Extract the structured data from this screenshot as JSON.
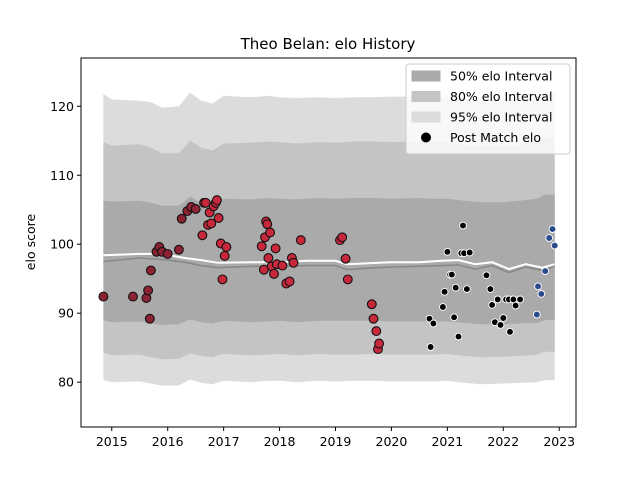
{
  "chart_data": {
    "type": "scatter",
    "title": "Theo Belan: elo History",
    "xlabel": "",
    "ylabel": "elo score",
    "xlim": [
      2014.45,
      2023.3
    ],
    "ylim": [
      73.5,
      127.0
    ],
    "xticks": [
      2015,
      2016,
      2017,
      2018,
      2019,
      2020,
      2021,
      2022,
      2023
    ],
    "xtick_labels": [
      "2015",
      "2016",
      "2017",
      "2018",
      "2019",
      "2020",
      "2021",
      "2022",
      "2023"
    ],
    "yticks": [
      80,
      90,
      100,
      110,
      120
    ],
    "ytick_labels": [
      "80",
      "90",
      "100",
      "110",
      "120"
    ],
    "legend_position": "top-right",
    "legend": [
      {
        "label": "50% elo Interval",
        "kind": "band",
        "color": "#aaaaaa"
      },
      {
        "label": "80% elo Interval",
        "kind": "band",
        "color": "#c4c4c4"
      },
      {
        "label": "95% elo Interval",
        "kind": "band",
        "color": "#dcdcdc"
      },
      {
        "label": "Post Match elo",
        "kind": "marker",
        "color": "#000000"
      }
    ],
    "bands": {
      "x": [
        2014.85,
        2015.0,
        2015.5,
        2015.7,
        2015.9,
        2016.2,
        2016.4,
        2016.6,
        2016.8,
        2017.0,
        2017.5,
        2017.8,
        2018.0,
        2018.3,
        2018.7,
        2019.0,
        2019.3,
        2019.7,
        2020.0,
        2020.5,
        2020.7,
        2021.0,
        2021.3,
        2021.6,
        2022.0,
        2022.3,
        2022.6,
        2022.75,
        2022.92
      ],
      "p95_upper": [
        121.8,
        121.0,
        120.8,
        120.6,
        119.8,
        120.0,
        122.0,
        120.8,
        120.4,
        121.5,
        121.3,
        121.5,
        121.3,
        121.2,
        121.3,
        121.2,
        121.3,
        121.3,
        121.4,
        121.4,
        121.3,
        121.4,
        121.0,
        121.0,
        120.9,
        121.1,
        121.4,
        122.0,
        122.0
      ],
      "p80_upper": [
        114.8,
        114.3,
        114.5,
        114.0,
        113.2,
        113.2,
        115.0,
        114.0,
        113.6,
        114.6,
        114.7,
        114.9,
        114.8,
        114.6,
        114.8,
        114.7,
        114.9,
        114.9,
        114.8,
        114.9,
        114.8,
        114.8,
        114.4,
        114.2,
        114.2,
        114.4,
        114.8,
        115.5,
        115.5
      ],
      "p50_upper": [
        106.3,
        106.2,
        106.3,
        106.0,
        105.6,
        105.6,
        106.9,
        106.0,
        105.8,
        106.6,
        106.5,
        106.7,
        106.6,
        106.5,
        106.7,
        106.6,
        106.7,
        106.7,
        106.6,
        106.7,
        106.6,
        106.6,
        106.3,
        106.1,
        106.1,
        106.3,
        106.6,
        107.2,
        107.2
      ],
      "p50_lower": [
        89.0,
        88.7,
        88.8,
        88.5,
        88.3,
        88.4,
        89.1,
        88.7,
        88.5,
        88.9,
        88.7,
        88.8,
        88.9,
        88.7,
        88.9,
        88.9,
        88.9,
        88.9,
        88.8,
        88.8,
        88.8,
        88.8,
        88.6,
        88.4,
        88.4,
        88.5,
        88.6,
        89.0,
        89.0
      ],
      "p80_lower": [
        84.3,
        83.9,
        84.0,
        83.6,
        83.3,
        83.4,
        84.2,
        83.8,
        83.6,
        84.1,
        83.9,
        84.0,
        84.1,
        83.9,
        84.1,
        84.0,
        84.0,
        84.1,
        84.0,
        84.0,
        84.0,
        84.1,
        83.8,
        83.6,
        83.7,
        83.8,
        84.0,
        84.4,
        84.4
      ],
      "p95_lower": [
        80.3,
        80.0,
        80.1,
        79.8,
        79.5,
        79.5,
        80.4,
        79.9,
        79.7,
        80.2,
        80.0,
        80.2,
        80.2,
        80.0,
        80.2,
        80.1,
        80.2,
        80.2,
        80.1,
        80.1,
        80.1,
        80.2,
        79.9,
        79.7,
        79.8,
        79.9,
        80.0,
        80.3,
        80.3
      ]
    },
    "median_line": {
      "color": "#888888",
      "x": [
        2014.85,
        2015.5,
        2016.0,
        2016.3,
        2016.6,
        2016.9,
        2017.5,
        2018.0,
        2018.5,
        2019.0,
        2019.2,
        2019.5,
        2020.0,
        2020.5,
        2020.9,
        2021.2,
        2021.5,
        2021.8,
        2022.1,
        2022.4,
        2022.7,
        2022.92
      ],
      "y": [
        97.5,
        98.0,
        97.7,
        97.4,
        96.9,
        96.6,
        96.8,
        96.8,
        96.9,
        96.9,
        96.3,
        96.5,
        96.7,
        96.8,
        96.9,
        97.0,
        96.4,
        96.9,
        95.9,
        96.7,
        96.2,
        96.8
      ]
    },
    "mean_line": {
      "color": "#ffffff",
      "x": [
        2014.85,
        2015.5,
        2015.9,
        2016.3,
        2016.6,
        2016.9,
        2017.5,
        2018.0,
        2018.5,
        2019.0,
        2019.2,
        2019.5,
        2020.0,
        2020.5,
        2020.9,
        2021.2,
        2021.5,
        2021.8,
        2022.1,
        2022.4,
        2022.7,
        2022.92
      ],
      "y": [
        98.4,
        98.6,
        98.6,
        98.0,
        97.7,
        97.3,
        97.4,
        97.4,
        97.6,
        97.6,
        97.1,
        97.2,
        97.4,
        97.4,
        97.6,
        97.7,
        97.1,
        97.4,
        96.4,
        97.1,
        96.6,
        97.1
      ]
    },
    "point_groups": [
      {
        "color": "#8b2332",
        "x": [
          2014.85,
          2015.38,
          2015.62,
          2015.65,
          2015.68,
          2015.7,
          2015.8,
          2015.85,
          2015.9,
          2016.0,
          2016.2,
          2016.25,
          2016.35,
          2016.42,
          2016.5
        ],
        "y": [
          92.4,
          92.4,
          92.2,
          93.3,
          89.2,
          96.2,
          98.9,
          99.6,
          98.9,
          98.6,
          99.2,
          103.7,
          104.8,
          105.4,
          105.1
        ]
      },
      {
        "color": "#c8283c",
        "x": [
          2016.62,
          2016.65,
          2016.68,
          2016.72,
          2016.75,
          2016.78,
          2016.82,
          2016.86,
          2016.88,
          2016.91,
          2016.95,
          2016.98,
          2017.02,
          2017.05,
          2017.68,
          2017.72,
          2017.74,
          2017.76,
          2017.78,
          2017.8,
          2017.83,
          2017.86,
          2017.9,
          2017.93,
          2017.95,
          2018.05,
          2018.12,
          2018.18,
          2018.22,
          2018.25,
          2018.38,
          2019.08,
          2019.12,
          2019.18,
          2019.22,
          2019.65,
          2019.68,
          2019.73,
          2019.76,
          2019.78
        ],
        "y": [
          101.3,
          106.0,
          106.0,
          102.8,
          104.6,
          103.0,
          105.5,
          106.0,
          106.4,
          103.8,
          100.1,
          94.9,
          98.3,
          99.6,
          99.7,
          96.3,
          101.0,
          103.3,
          102.9,
          98.0,
          101.7,
          96.8,
          95.7,
          99.4,
          97.1,
          96.9,
          94.3,
          94.6,
          98.0,
          97.3,
          100.6,
          100.6,
          101.0,
          97.9,
          94.9,
          91.3,
          89.2,
          87.4,
          84.8,
          85.6
        ]
      },
      {
        "color": "#000000",
        "x": [
          2020.68,
          2020.75,
          2020.92,
          2020.95,
          2021.0,
          2021.05,
          2021.08,
          2021.12,
          2021.15,
          2021.2,
          2021.25,
          2021.28,
          2021.3,
          2021.35,
          2021.7,
          2021.77,
          2021.8,
          2021.85,
          2021.9,
          2021.95,
          2022.0,
          2022.05,
          2022.1,
          2022.12,
          2022.18,
          2022.22,
          2022.3
        ],
        "y": [
          89.2,
          88.5,
          90.9,
          93.1,
          98.9,
          95.6,
          95.6,
          89.4,
          93.7,
          86.6,
          98.7,
          102.7,
          98.7,
          93.5,
          95.5,
          93.5,
          91.2,
          88.7,
          92.0,
          88.3,
          89.3,
          92.0,
          92.0,
          87.3,
          92.0,
          91.1,
          92.0
        ]
      },
      {
        "color": "#2a4a8c",
        "x": [
          2022.6,
          2022.62,
          2022.68,
          2022.75,
          2022.82,
          2022.88,
          2022.92
        ],
        "y": [
          89.8,
          93.9,
          92.8,
          96.1,
          100.9,
          102.2,
          99.8
        ]
      }
    ]
  },
  "extra_points": {
    "black_small": {
      "x": [
        2020.7,
        2021.4
      ],
      "y": [
        85.1,
        98.8
      ]
    }
  }
}
